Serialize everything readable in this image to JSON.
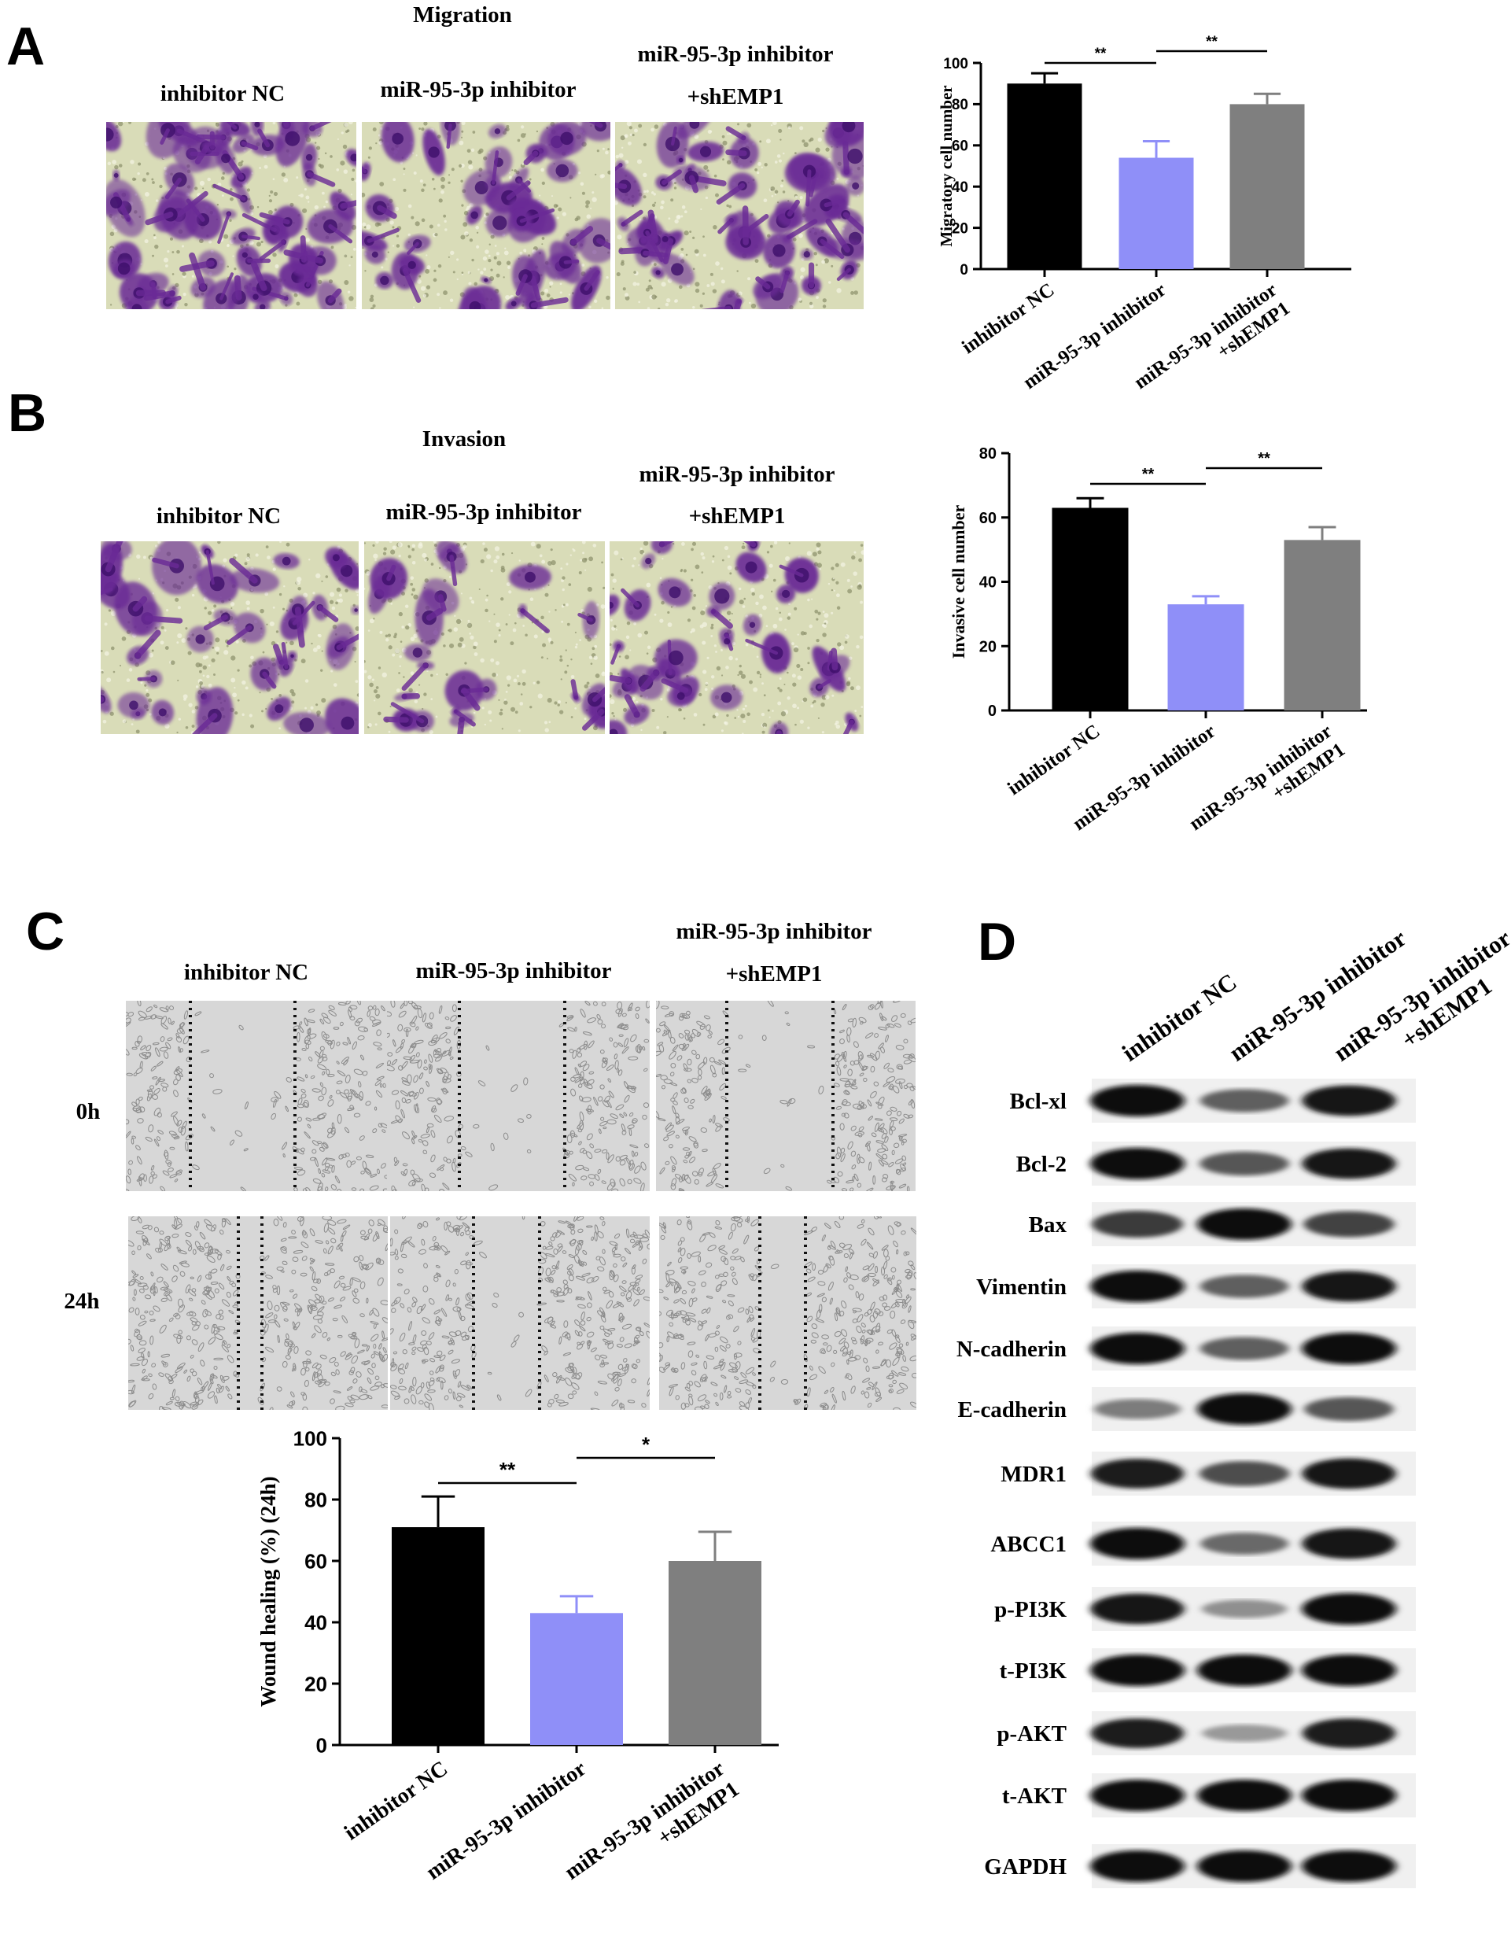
{
  "colors": {
    "bar_nc": "#000000",
    "bar_inhibitor": "#8f8ff8",
    "bar_shemp1": "#7f7f7f",
    "stain": "#6a2a96",
    "micro_bg": "#d9dcb8",
    "wound_bg": "#d7d7d7"
  },
  "panels": {
    "A": {
      "letter": "A",
      "section_title": "Migration",
      "image_labels": [
        "inhibitor NC",
        "miR-95-3p inhibitor",
        "miR-95-3p inhibitor",
        "+shEMP1"
      ]
    },
    "B": {
      "letter": "B",
      "section_title": "Invasion",
      "image_labels": [
        "inhibitor NC",
        "miR-95-3p inhibitor",
        "miR-95-3p inhibitor",
        "+shEMP1"
      ]
    },
    "C": {
      "letter": "C",
      "image_labels": [
        "inhibitor NC",
        "miR-95-3p inhibitor",
        "miR-95-3p inhibitor",
        "+shEMP1"
      ],
      "row_labels": [
        "0h",
        "24h"
      ]
    },
    "D": {
      "letter": "D",
      "lane_labels": [
        [
          "inhibitor NC"
        ],
        [
          "miR-95-3p inhibitor"
        ],
        [
          "miR-95-3p inhibitor",
          "+shEMP1"
        ]
      ],
      "proteins": [
        "Bcl-xl",
        "Bcl-2",
        "Bax",
        "Vimentin",
        "N-cadherin",
        "E-cadherin",
        "MDR1",
        "ABCC1",
        "p-PI3K",
        "t-PI3K",
        "p-AKT",
        "t-AKT",
        "GAPDH"
      ],
      "band_intensity": [
        [
          1.0,
          0.55,
          0.95
        ],
        [
          1.0,
          0.6,
          0.95
        ],
        [
          0.75,
          1.0,
          0.7
        ],
        [
          1.0,
          0.55,
          0.95
        ],
        [
          1.0,
          0.55,
          1.0
        ],
        [
          0.4,
          1.0,
          0.6
        ],
        [
          0.9,
          0.65,
          0.95
        ],
        [
          1.0,
          0.5,
          0.95
        ],
        [
          0.95,
          0.3,
          1.0
        ],
        [
          1.0,
          1.0,
          1.0
        ],
        [
          0.9,
          0.25,
          0.9
        ],
        [
          1.0,
          1.0,
          1.0
        ],
        [
          1.0,
          1.0,
          1.0
        ]
      ]
    }
  },
  "chart_data": [
    {
      "type": "bar",
      "panel": "A",
      "categories": [
        [
          "inhibitor NC"
        ],
        [
          "miR-95-3p inhibitor"
        ],
        [
          "miR-95-3p inhibitor",
          "+shEMP1"
        ]
      ],
      "values": [
        90,
        54,
        80
      ],
      "errors": [
        5,
        8,
        5
      ],
      "ylabel": "Migratory cell number",
      "ylim": [
        0,
        100
      ],
      "yticks": [
        0,
        20,
        40,
        60,
        80,
        100
      ],
      "significance": [
        {
          "from": 0,
          "to": 1,
          "label": "**"
        },
        {
          "from": 1,
          "to": 2,
          "label": "**"
        }
      ]
    },
    {
      "type": "bar",
      "panel": "B",
      "categories": [
        [
          "inhibitor NC"
        ],
        [
          "miR-95-3p inhibitor"
        ],
        [
          "miR-95-3p inhibitor",
          "+shEMP1"
        ]
      ],
      "values": [
        63,
        33,
        53
      ],
      "errors": [
        3,
        2.5,
        4
      ],
      "ylabel": "Invasive cell number",
      "ylim": [
        0,
        80
      ],
      "yticks": [
        0,
        20,
        40,
        60,
        80
      ],
      "significance": [
        {
          "from": 0,
          "to": 1,
          "label": "**"
        },
        {
          "from": 1,
          "to": 2,
          "label": "**"
        }
      ]
    },
    {
      "type": "bar",
      "panel": "C",
      "categories": [
        [
          "inhibitor NC"
        ],
        [
          "miR-95-3p inhibitor"
        ],
        [
          "miR-95-3p inhibitor",
          "+shEMP1"
        ]
      ],
      "values": [
        71,
        43,
        60
      ],
      "errors": [
        10,
        5.5,
        9.5
      ],
      "ylabel": "Wound healing (%) (24h)",
      "ylim": [
        0,
        100
      ],
      "yticks": [
        0,
        20,
        40,
        60,
        80,
        100
      ],
      "significance": [
        {
          "from": 0,
          "to": 1,
          "label": "**"
        },
        {
          "from": 1,
          "to": 2,
          "label": "*"
        }
      ]
    }
  ]
}
